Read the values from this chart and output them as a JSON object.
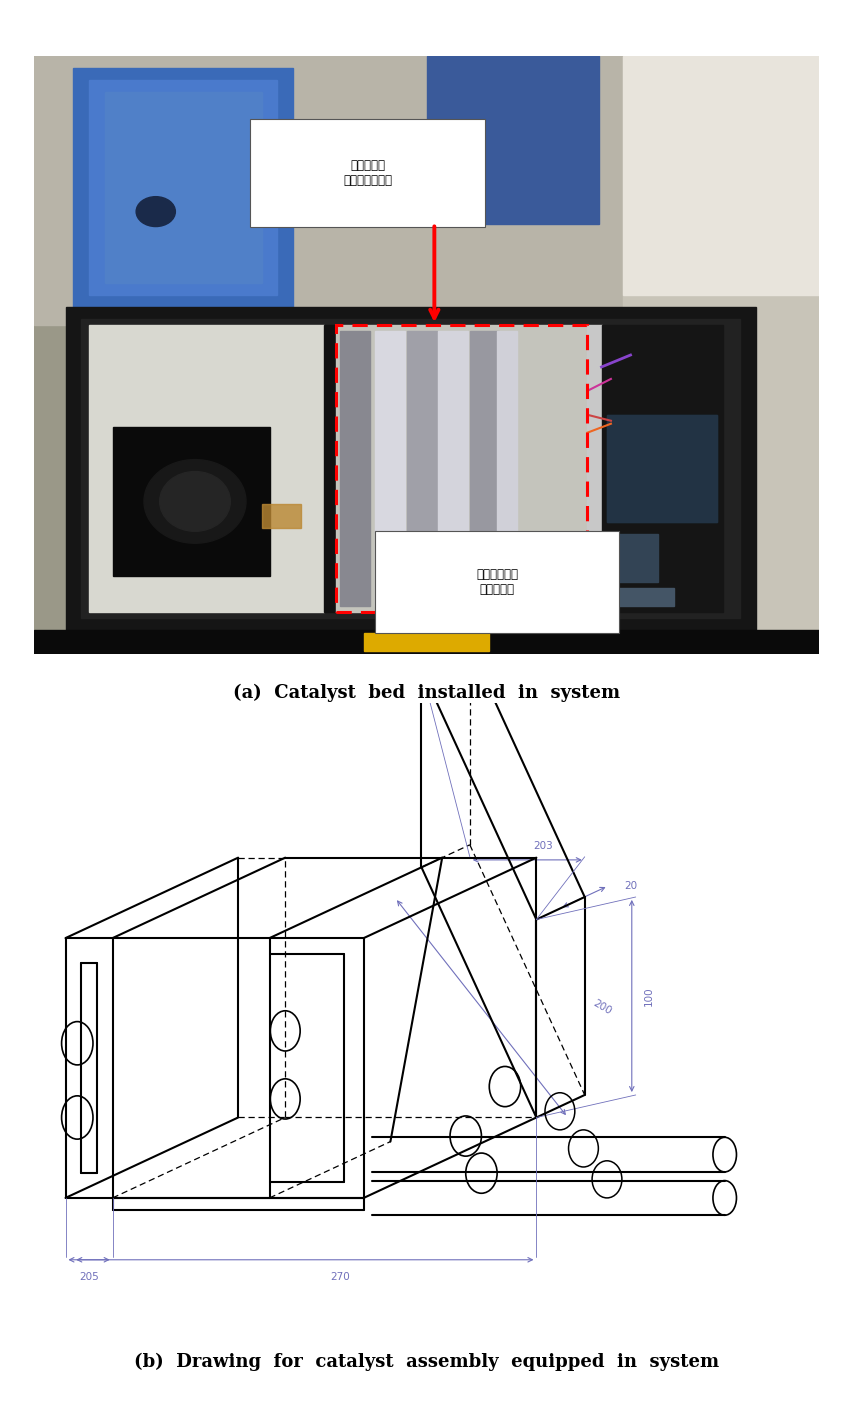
{
  "fig_width": 8.53,
  "fig_height": 14.06,
  "bg_color": "#ffffff",
  "caption_a": "(a)  Catalyst  bed  installed  in  system",
  "caption_b": "(b)  Drawing  for  catalyst  assembly  equipped  in  system",
  "caption_fontsize": 13,
  "caption_fontfamily": "DejaVu Serif",
  "label_korean_1": "일산화탄소\n산화반응촉매층",
  "label_korean_2": "살균재연청화\n촉매필터층",
  "dim_color": "#7070bb",
  "photo_bg": "#8a8878",
  "photo_device_dark": "#1a1a1a",
  "photo_device_inner": "#252525",
  "photo_white_panel": "#d0d0c8",
  "photo_blue1": "#3a5fa0",
  "photo_blue2": "#5577cc",
  "photo_catalyst_bg": "#b8b8b0",
  "photo_right_side": "#aaaaaa"
}
